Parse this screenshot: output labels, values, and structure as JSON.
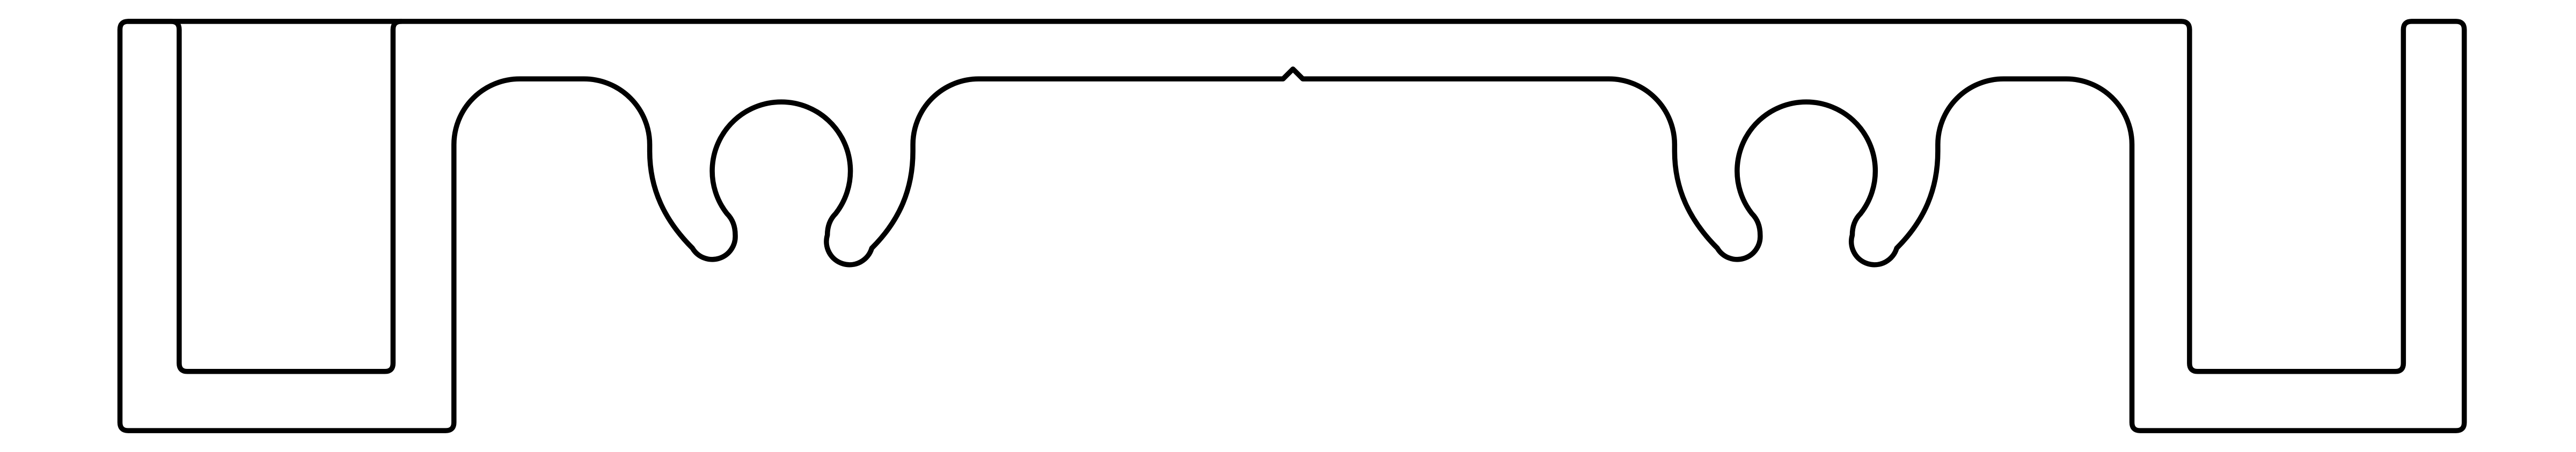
{
  "diagram": {
    "kind": "extrusion-profile-cross-section",
    "text_labels": [],
    "style": {
      "background": "#ffffff",
      "stroke": "#000000"
    },
    "parts": [
      {
        "name": "profile-outline"
      },
      {
        "name": "left-channel-leg"
      },
      {
        "name": "right-channel-leg"
      },
      {
        "name": "center-notch"
      },
      {
        "name": "left-screw-boss"
      },
      {
        "name": "right-screw-boss"
      }
    ]
  }
}
